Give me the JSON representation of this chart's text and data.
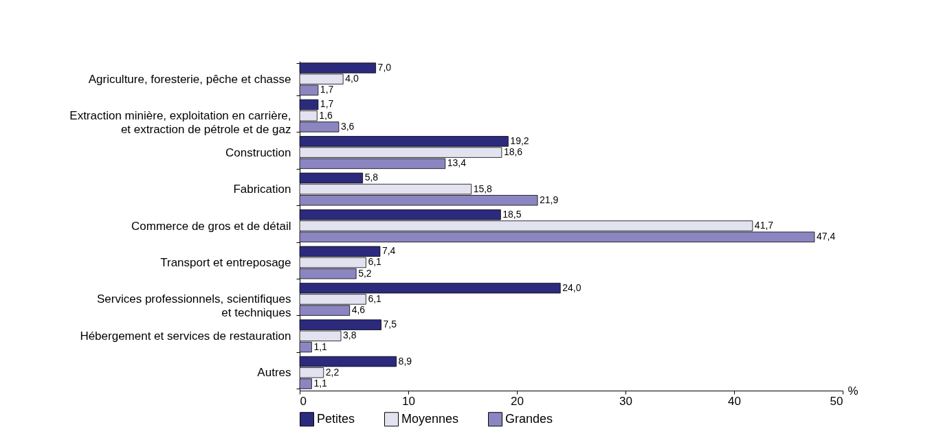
{
  "chart_data": {
    "type": "bar",
    "orientation": "horizontal",
    "xlabel": "%",
    "categories": [
      "Agriculture, foresterie, pêche et chasse",
      "Extraction minière, exploitation en carrière,\net extraction de pétrole et de gaz",
      "Construction",
      "Fabrication",
      "Commerce de gros et de détail",
      "Transport et entreposage",
      "Services professionnels, scientifiques\net techniques",
      "Hébergement et services de restauration",
      "Autres"
    ],
    "series": [
      {
        "name": "Petites",
        "color": "#2b2a7d",
        "values": [
          7.0,
          1.7,
          19.2,
          5.8,
          18.5,
          7.4,
          24.0,
          7.5,
          8.9
        ],
        "value_labels": [
          "7,0",
          "1,7",
          "19,2",
          "5,8",
          "18,5",
          "7,4",
          "24,0",
          "7,5",
          "8,9"
        ]
      },
      {
        "name": "Moyennes",
        "color": "#e3e2f0",
        "values": [
          4.0,
          1.6,
          18.6,
          15.8,
          41.7,
          6.1,
          6.1,
          3.8,
          2.2
        ],
        "value_labels": [
          "4,0",
          "1,6",
          "18,6",
          "15,8",
          "41,7",
          "6,1",
          "6,1",
          "3,8",
          "2,2"
        ]
      },
      {
        "name": "Grandes",
        "color": "#8b86c1",
        "values": [
          1.7,
          3.6,
          13.4,
          21.9,
          47.4,
          5.2,
          4.6,
          1.1,
          1.1
        ],
        "value_labels": [
          "1,7",
          "3,6",
          "13,4",
          "21,9",
          "47,4",
          "5,2",
          "4,6",
          "1,1",
          "1,1"
        ]
      }
    ],
    "xlim": [
      0,
      50
    ],
    "xticks": [
      0,
      10,
      20,
      30,
      40,
      50
    ],
    "legend": "bottom",
    "grid": false
  }
}
